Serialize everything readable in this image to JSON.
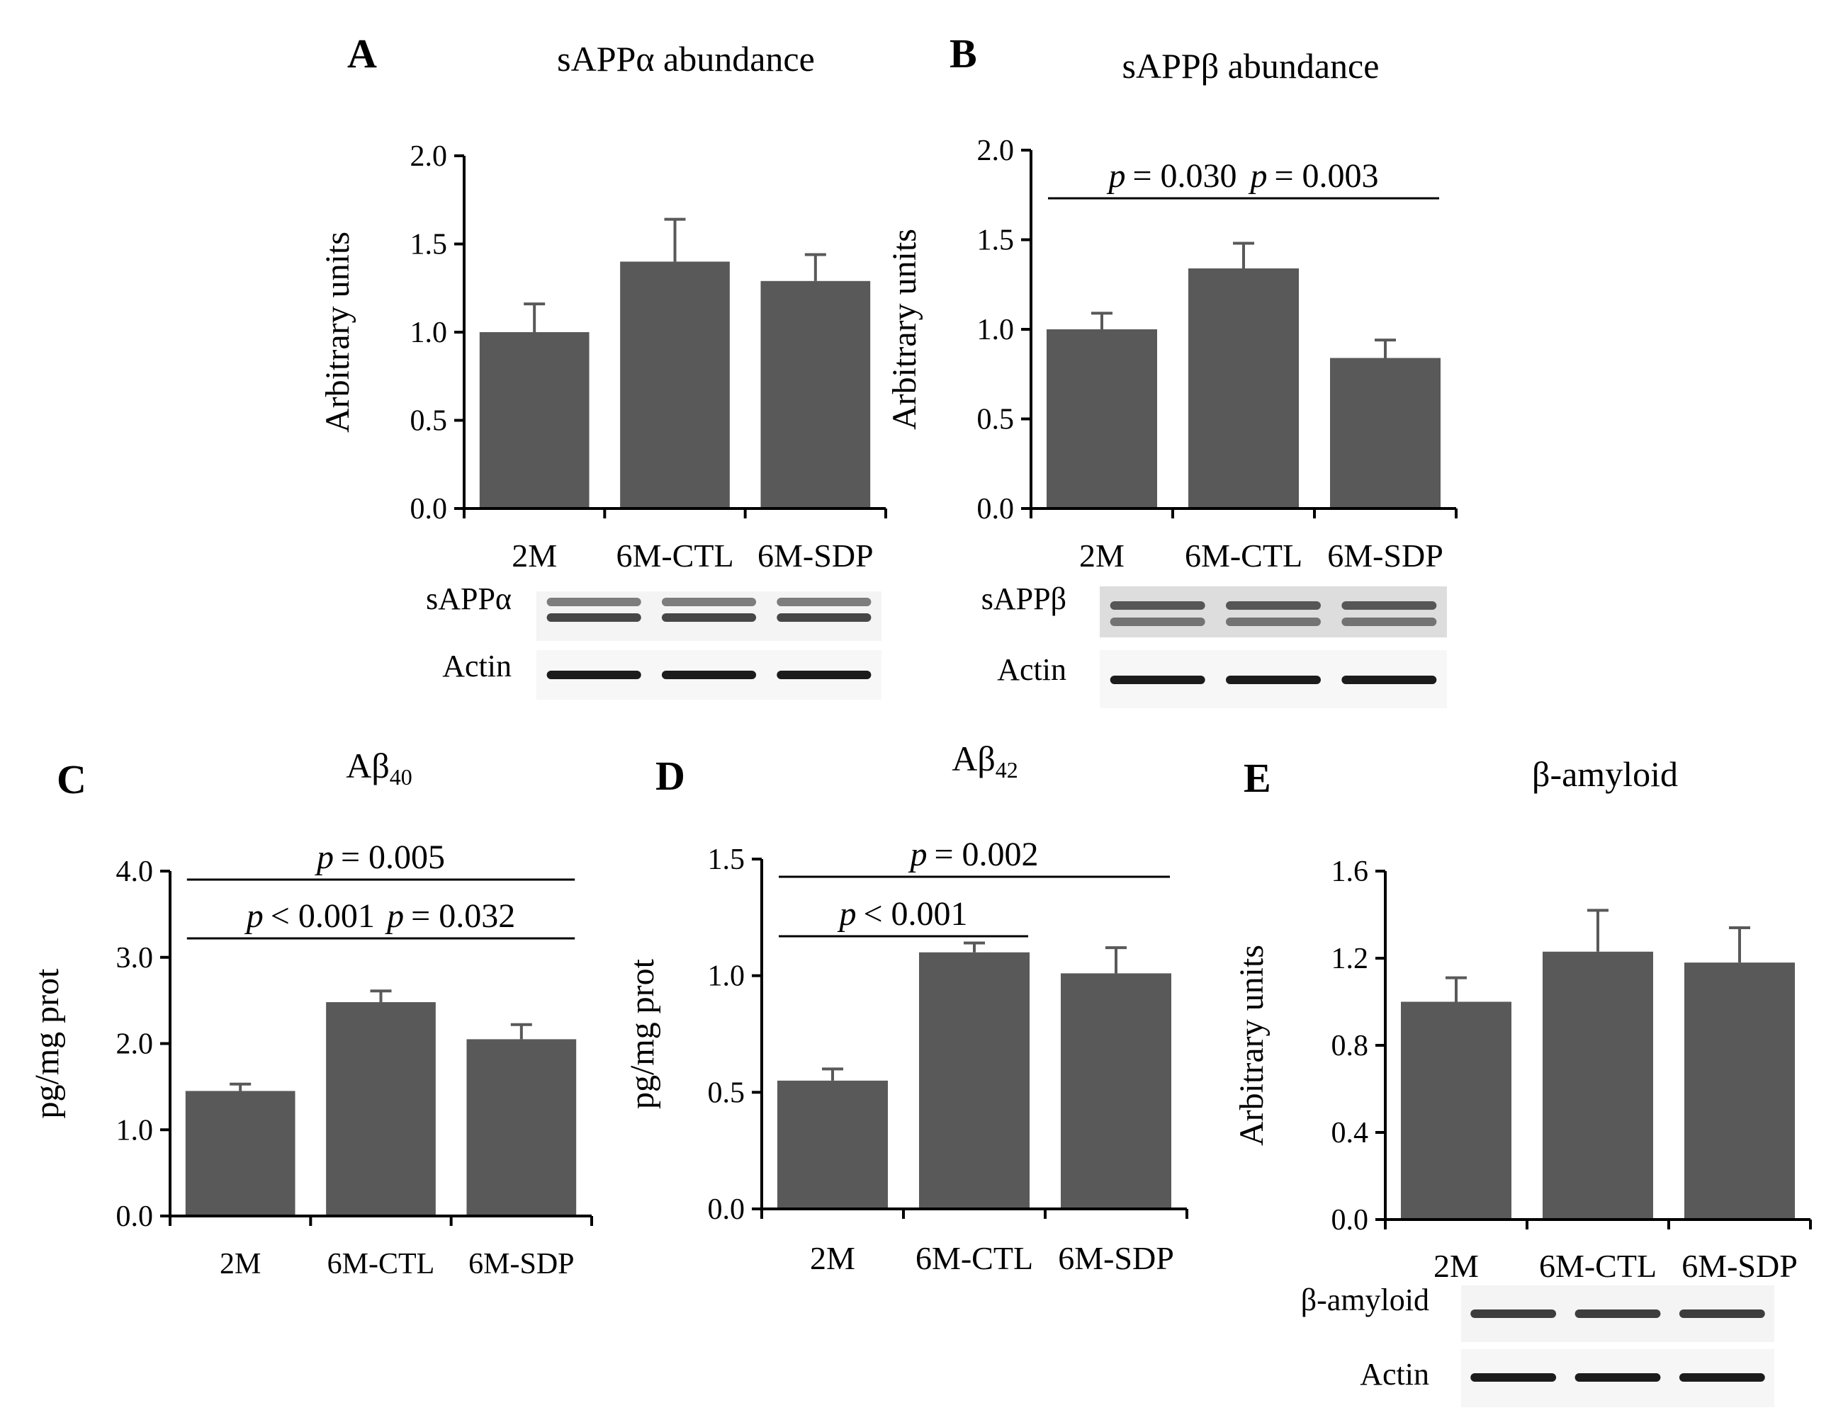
{
  "colors": {
    "bar": "#595959",
    "axis": "#000000",
    "background": "#ffffff"
  },
  "chart_data": [
    {
      "panel": "A",
      "type": "bar",
      "title": "sAPPα abundance",
      "ylabel": "Arbitrary units",
      "xlabel": "",
      "categories": [
        "2M",
        "6M-CTL",
        "6M-SDP"
      ],
      "values": [
        1.0,
        1.4,
        1.29
      ],
      "errors": [
        0.16,
        0.24,
        0.15
      ],
      "ylim": [
        0,
        2.0
      ],
      "ticks": [
        "0.0",
        "0.5",
        "1.0",
        "1.5",
        "2.0"
      ],
      "significance": [],
      "blot": {
        "labels": [
          "sAPPα",
          "Actin"
        ]
      }
    },
    {
      "panel": "B",
      "type": "bar",
      "title": "sAPPβ abundance",
      "ylabel": "Arbitrary units",
      "xlabel": "",
      "categories": [
        "2M",
        "6M-CTL",
        "6M-SDP"
      ],
      "values": [
        1.0,
        1.34,
        0.84
      ],
      "errors": [
        0.09,
        0.14,
        0.1
      ],
      "ylim": [
        0,
        2.0
      ],
      "ticks": [
        "0.0",
        "0.5",
        "1.0",
        "1.5",
        "2.0"
      ],
      "significance": [
        {
          "from": 0,
          "to": 1,
          "p": "= 0.030"
        },
        {
          "from": 1,
          "to": 2,
          "p": "= 0.003"
        }
      ],
      "blot": {
        "labels": [
          "sAPPβ",
          "Actin"
        ]
      }
    },
    {
      "panel": "C",
      "type": "bar",
      "title": "Aβ",
      "title_sub": "40",
      "ylabel": "pg/mg prot",
      "xlabel": "",
      "categories": [
        "2M",
        "6M-CTL",
        "6M-SDP"
      ],
      "values": [
        1.45,
        2.48,
        2.05
      ],
      "errors": [
        0.08,
        0.13,
        0.17
      ],
      "ylim": [
        0,
        4.0
      ],
      "ticks": [
        "0.0",
        "1.0",
        "2.0",
        "3.0",
        "4.0"
      ],
      "significance": [
        {
          "from": 0,
          "to": 1,
          "p": "< 0.001"
        },
        {
          "from": 1,
          "to": 2,
          "p": "= 0.032"
        },
        {
          "from": 0,
          "to": 2,
          "p": "= 0.005"
        }
      ]
    },
    {
      "panel": "D",
      "type": "bar",
      "title": "Aβ",
      "title_sub": "42",
      "ylabel": "pg/mg prot",
      "xlabel": "",
      "categories": [
        "2M",
        "6M-CTL",
        "6M-SDP"
      ],
      "values": [
        0.55,
        1.1,
        1.01
      ],
      "errors": [
        0.05,
        0.04,
        0.11
      ],
      "ylim": [
        0,
        1.5
      ],
      "ticks": [
        "0.0",
        "0.5",
        "1.0",
        "1.5"
      ],
      "significance": [
        {
          "from": 0,
          "to": 1,
          "p": "< 0.001"
        },
        {
          "from": 0,
          "to": 2,
          "p": "= 0.002"
        }
      ]
    },
    {
      "panel": "E",
      "type": "bar",
      "title": "β-amyloid",
      "ylabel": "Arbitrary units",
      "xlabel": "",
      "categories": [
        "2M",
        "6M-CTL",
        "6M-SDP"
      ],
      "values": [
        1.0,
        1.23,
        1.18
      ],
      "errors": [
        0.11,
        0.19,
        0.16
      ],
      "ylim": [
        0,
        1.6
      ],
      "ticks": [
        "0.0",
        "0.4",
        "0.8",
        "1.2",
        "1.6"
      ],
      "significance": [],
      "blot": {
        "labels": [
          "β-amyloid",
          "Actin"
        ]
      }
    }
  ]
}
